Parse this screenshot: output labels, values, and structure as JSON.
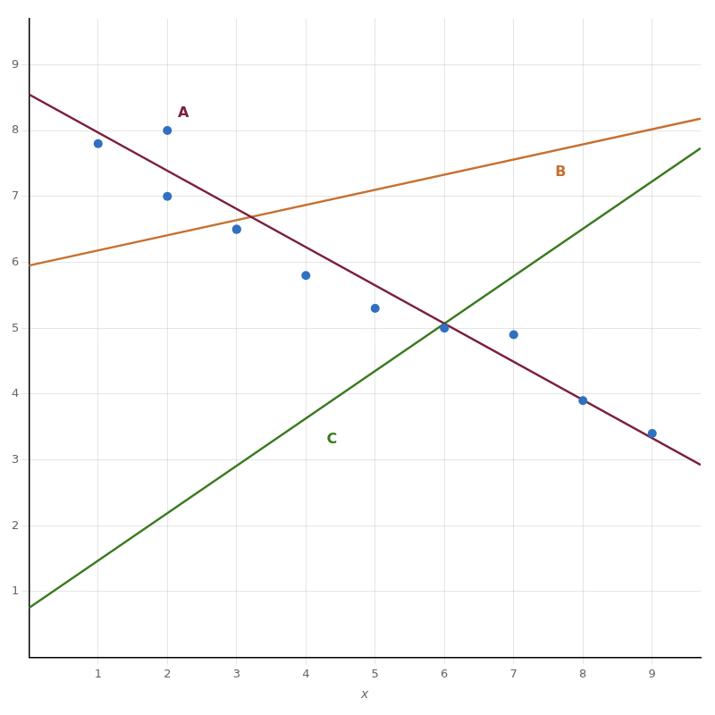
{
  "chart_data": {
    "type": "scatter",
    "xlabel": "x",
    "xlim": [
      0,
      9.7
    ],
    "ylim": [
      0,
      9.7
    ],
    "xticks": [
      1,
      2,
      3,
      4,
      5,
      6,
      7,
      8,
      9
    ],
    "yticks": [
      1,
      2,
      3,
      4,
      5,
      6,
      7,
      8,
      9
    ],
    "grid": true,
    "series": [
      {
        "type": "line",
        "color": "#7B2040",
        "x": [
          0,
          9.7
        ],
        "values": [
          8.55,
          2.924
        ]
      },
      {
        "type": "line",
        "color": "#C87030",
        "x": [
          0,
          9.7
        ],
        "values": [
          5.95,
          8.181
        ]
      },
      {
        "type": "line",
        "color": "#3A7A20",
        "x": [
          0,
          9.7
        ],
        "values": [
          0.75,
          7.734
        ]
      },
      {
        "type": "scatter",
        "color": "#3070C0",
        "x": [
          1,
          2,
          2,
          3,
          3,
          4,
          5,
          6,
          7,
          8,
          9
        ],
        "values": [
          7.8,
          8.0,
          7.0,
          6.5,
          6.5,
          5.8,
          5.3,
          5.0,
          4.9,
          3.9,
          3.4
        ]
      }
    ],
    "annotations": [
      {
        "text": "A",
        "x": 2.15,
        "y": 8.15,
        "color": "#7B2040"
      },
      {
        "text": "B",
        "x": 7.6,
        "y": 7.25,
        "color": "#C87030"
      },
      {
        "text": "C",
        "x": 4.3,
        "y": 3.2,
        "color": "#3A7A20"
      }
    ]
  }
}
